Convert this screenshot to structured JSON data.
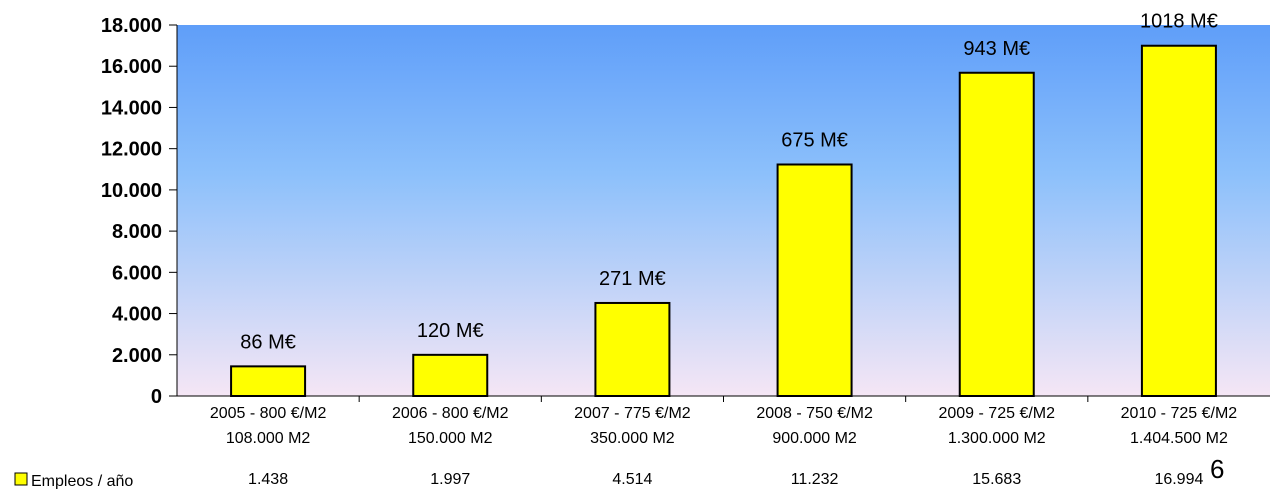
{
  "chart_data": {
    "type": "bar",
    "categories": [
      [
        "2005 - 800 €/M2",
        "108.000 M2"
      ],
      [
        "2006 - 800 €/M2",
        "150.000 M2"
      ],
      [
        "2007 - 775 €/M2",
        "350.000 M2"
      ],
      [
        "2008 - 750 €/M2",
        "900.000 M2"
      ],
      [
        "2009 - 725 €/M2",
        "1.300.000 M2"
      ],
      [
        "2010 - 725 €/M2",
        "1.404.500 M2"
      ]
    ],
    "series": [
      {
        "name": "Empleos / año",
        "values": [
          1438,
          1997,
          4514,
          11232,
          15683,
          16994
        ],
        "table_labels": [
          "1.438",
          "1.997",
          "4.514",
          "11.232",
          "15.683",
          "16.994"
        ],
        "color": "#ffff00"
      }
    ],
    "data_labels": [
      "86 M€",
      "120 M€",
      "271 M€",
      "675 M€",
      "943 M€",
      "1018 M€"
    ],
    "yticks": [
      "0",
      "2.000",
      "4.000",
      "6.000",
      "8.000",
      "10.000",
      "12.000",
      "14.000",
      "16.000",
      "18.000"
    ],
    "ylim": [
      0,
      18000
    ],
    "ystep": 2000,
    "legend": "bottom-left data table",
    "grid": false,
    "background_gradient": [
      "#5f9ef9",
      "#f5e6f5"
    ]
  },
  "page_number": "6"
}
